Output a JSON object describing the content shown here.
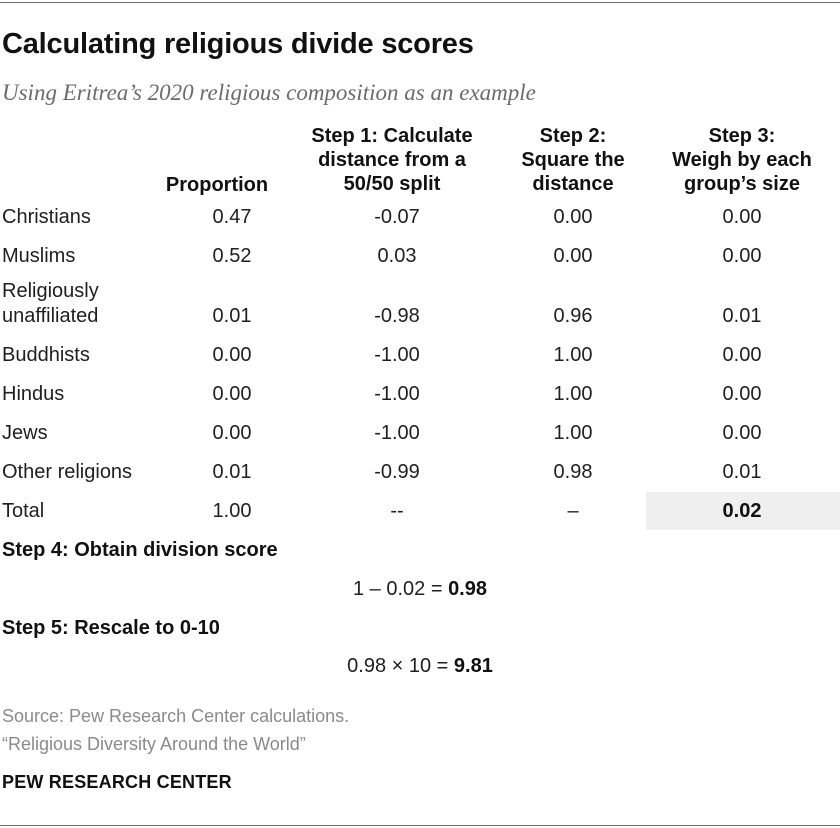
{
  "title": "Calculating religious divide scores",
  "subtitle": "Using Eritrea’s 2020 religious composition as an example",
  "headers": {
    "proportion": "Proportion",
    "step1_l1": "Step 1: Calculate",
    "step1_l2": "distance from a",
    "step1_l3": "50/50 split",
    "step2_l1": "Step 2:",
    "step2_l2": "Square the",
    "step2_l3": "distance",
    "step3_l1": "Step 3:",
    "step3_l2": "Weigh by each",
    "step3_l3": "group’s size"
  },
  "rows": [
    {
      "label": "Christians",
      "label2": "",
      "proportion": "0.47",
      "distance": "-0.07",
      "squared": "0.00",
      "weighted": "0.00"
    },
    {
      "label": "Muslims",
      "label2": "",
      "proportion": "0.52",
      "distance": "0.03",
      "squared": "0.00",
      "weighted": "0.00"
    },
    {
      "label": "Religiously",
      "label2": "unaffiliated",
      "proportion": "0.01",
      "distance": "-0.98",
      "squared": "0.96",
      "weighted": "0.01"
    },
    {
      "label": "Buddhists",
      "label2": "",
      "proportion": "0.00",
      "distance": "-1.00",
      "squared": "1.00",
      "weighted": "0.00"
    },
    {
      "label": "Hindus",
      "label2": "",
      "proportion": "0.00",
      "distance": "-1.00",
      "squared": "1.00",
      "weighted": "0.00"
    },
    {
      "label": "Jews",
      "label2": "",
      "proportion": "0.00",
      "distance": "-1.00",
      "squared": "1.00",
      "weighted": "0.00"
    },
    {
      "label": "Other religions",
      "label2": "",
      "proportion": "0.01",
      "distance": "-0.99",
      "squared": "0.98",
      "weighted": "0.01"
    }
  ],
  "total": {
    "label": "Total",
    "proportion": "1.00",
    "distance": "--",
    "squared": "–",
    "weighted": "0.02"
  },
  "step4": {
    "label": "Step 4: Obtain division score",
    "formula": "1 – 0.02 = ",
    "result": "0.98"
  },
  "step5": {
    "label": "Step 5: Rescale to 0-10",
    "formula": "0.98 × 10 = ",
    "result": "9.81"
  },
  "source_line1": "Source: Pew Research Center calculations.",
  "source_line2": "“Religious Diversity Around the World”",
  "brand": "PEW RESEARCH CENTER",
  "colors": {
    "text": "#1f1f1f",
    "muted": "#8a8a8a",
    "highlight": "#efefef"
  }
}
